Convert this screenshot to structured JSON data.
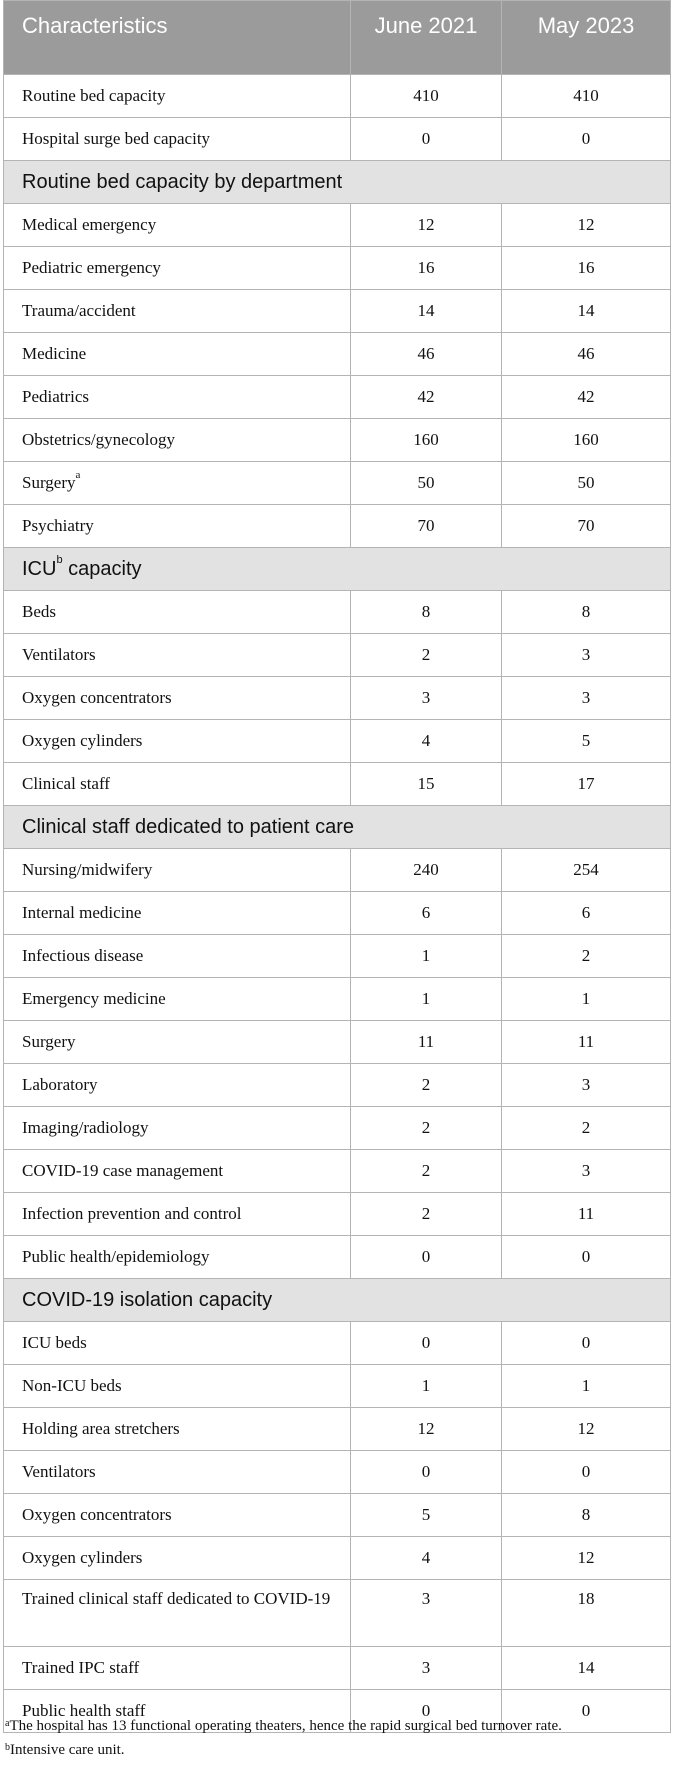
{
  "table": {
    "header": {
      "characteristics": "Characteristics",
      "col1": "June 2021",
      "col2": "May 2023"
    },
    "top_rows": [
      {
        "label": "Routine bed capacity",
        "v1": "410",
        "v2": "410"
      },
      {
        "label": "Hospital surge bed capacity",
        "v1": "0",
        "v2": "0"
      }
    ],
    "sec_routine": {
      "title": "Routine bed capacity by department",
      "rows": [
        {
          "label": "Medical emergency",
          "v1": "12",
          "v2": "12"
        },
        {
          "label": "Pediatric emergency",
          "v1": "16",
          "v2": "16"
        },
        {
          "label": "Trauma/accident",
          "v1": "14",
          "v2": "14"
        },
        {
          "label": "Medicine",
          "v1": "46",
          "v2": "46"
        },
        {
          "label": "Pediatrics",
          "v1": "42",
          "v2": "42"
        },
        {
          "label": "Obstetrics/gynecology",
          "v1": "160",
          "v2": "160"
        },
        {
          "label": "Surgery",
          "sup": "a",
          "v1": "50",
          "v2": "50"
        },
        {
          "label": "Psychiatry",
          "v1": "70",
          "v2": "70"
        }
      ]
    },
    "sec_icu": {
      "title_pre": "ICU",
      "title_sup": "b",
      "title_post": " capacity",
      "rows": [
        {
          "label": "Beds",
          "v1": "8",
          "v2": "8"
        },
        {
          "label": "Ventilators",
          "v1": "2",
          "v2": "3"
        },
        {
          "label": "Oxygen concentrators",
          "v1": "3",
          "v2": "3"
        },
        {
          "label": "Oxygen cylinders",
          "v1": "4",
          "v2": "5"
        },
        {
          "label": "Clinical staff",
          "v1": "15",
          "v2": "17"
        }
      ]
    },
    "sec_staff": {
      "title": "Clinical staff dedicated to patient care",
      "rows": [
        {
          "label": "Nursing/midwifery",
          "v1": "240",
          "v2": "254"
        },
        {
          "label": "Internal medicine",
          "v1": "6",
          "v2": "6"
        },
        {
          "label": "Infectious disease",
          "v1": "1",
          "v2": "2"
        },
        {
          "label": "Emergency medicine",
          "v1": "1",
          "v2": "1"
        },
        {
          "label": "Surgery",
          "v1": "11",
          "v2": "11"
        },
        {
          "label": "Laboratory",
          "v1": "2",
          "v2": "3"
        },
        {
          "label": "Imaging/radiology",
          "v1": "2",
          "v2": "2"
        },
        {
          "label": "COVID-19 case management",
          "v1": "2",
          "v2": "3"
        },
        {
          "label": "Infection prevention and control",
          "v1": "2",
          "v2": "11"
        },
        {
          "label": "Public health/epidemiology",
          "v1": "0",
          "v2": "0"
        }
      ]
    },
    "sec_isolation": {
      "title": "COVID-19 isolation capacity",
      "rows": [
        {
          "label": "ICU beds",
          "v1": "0",
          "v2": "0"
        },
        {
          "label": "Non-ICU beds",
          "v1": "1",
          "v2": "1"
        },
        {
          "label": "Holding area stretchers",
          "v1": "12",
          "v2": "12"
        },
        {
          "label": "Ventilators",
          "v1": "0",
          "v2": "0"
        },
        {
          "label": "Oxygen concentrators",
          "v1": "5",
          "v2": "8"
        },
        {
          "label": "Oxygen cylinders",
          "v1": "4",
          "v2": "12"
        },
        {
          "label": "Trained clinical staff dedicated to COVID-19",
          "v1": "3",
          "v2": "18",
          "tall": true
        },
        {
          "label": "Trained IPC staff",
          "v1": "3",
          "v2": "14"
        },
        {
          "label": "Public health staff",
          "v1": "0",
          "v2": "0"
        }
      ]
    }
  },
  "footnotes": {
    "a_mark": "a",
    "a_text": "The hospital has 13 functional operating theaters, hence the rapid surgical bed turnover rate.",
    "b_mark": "b",
    "b_text": "Intensive care unit."
  }
}
